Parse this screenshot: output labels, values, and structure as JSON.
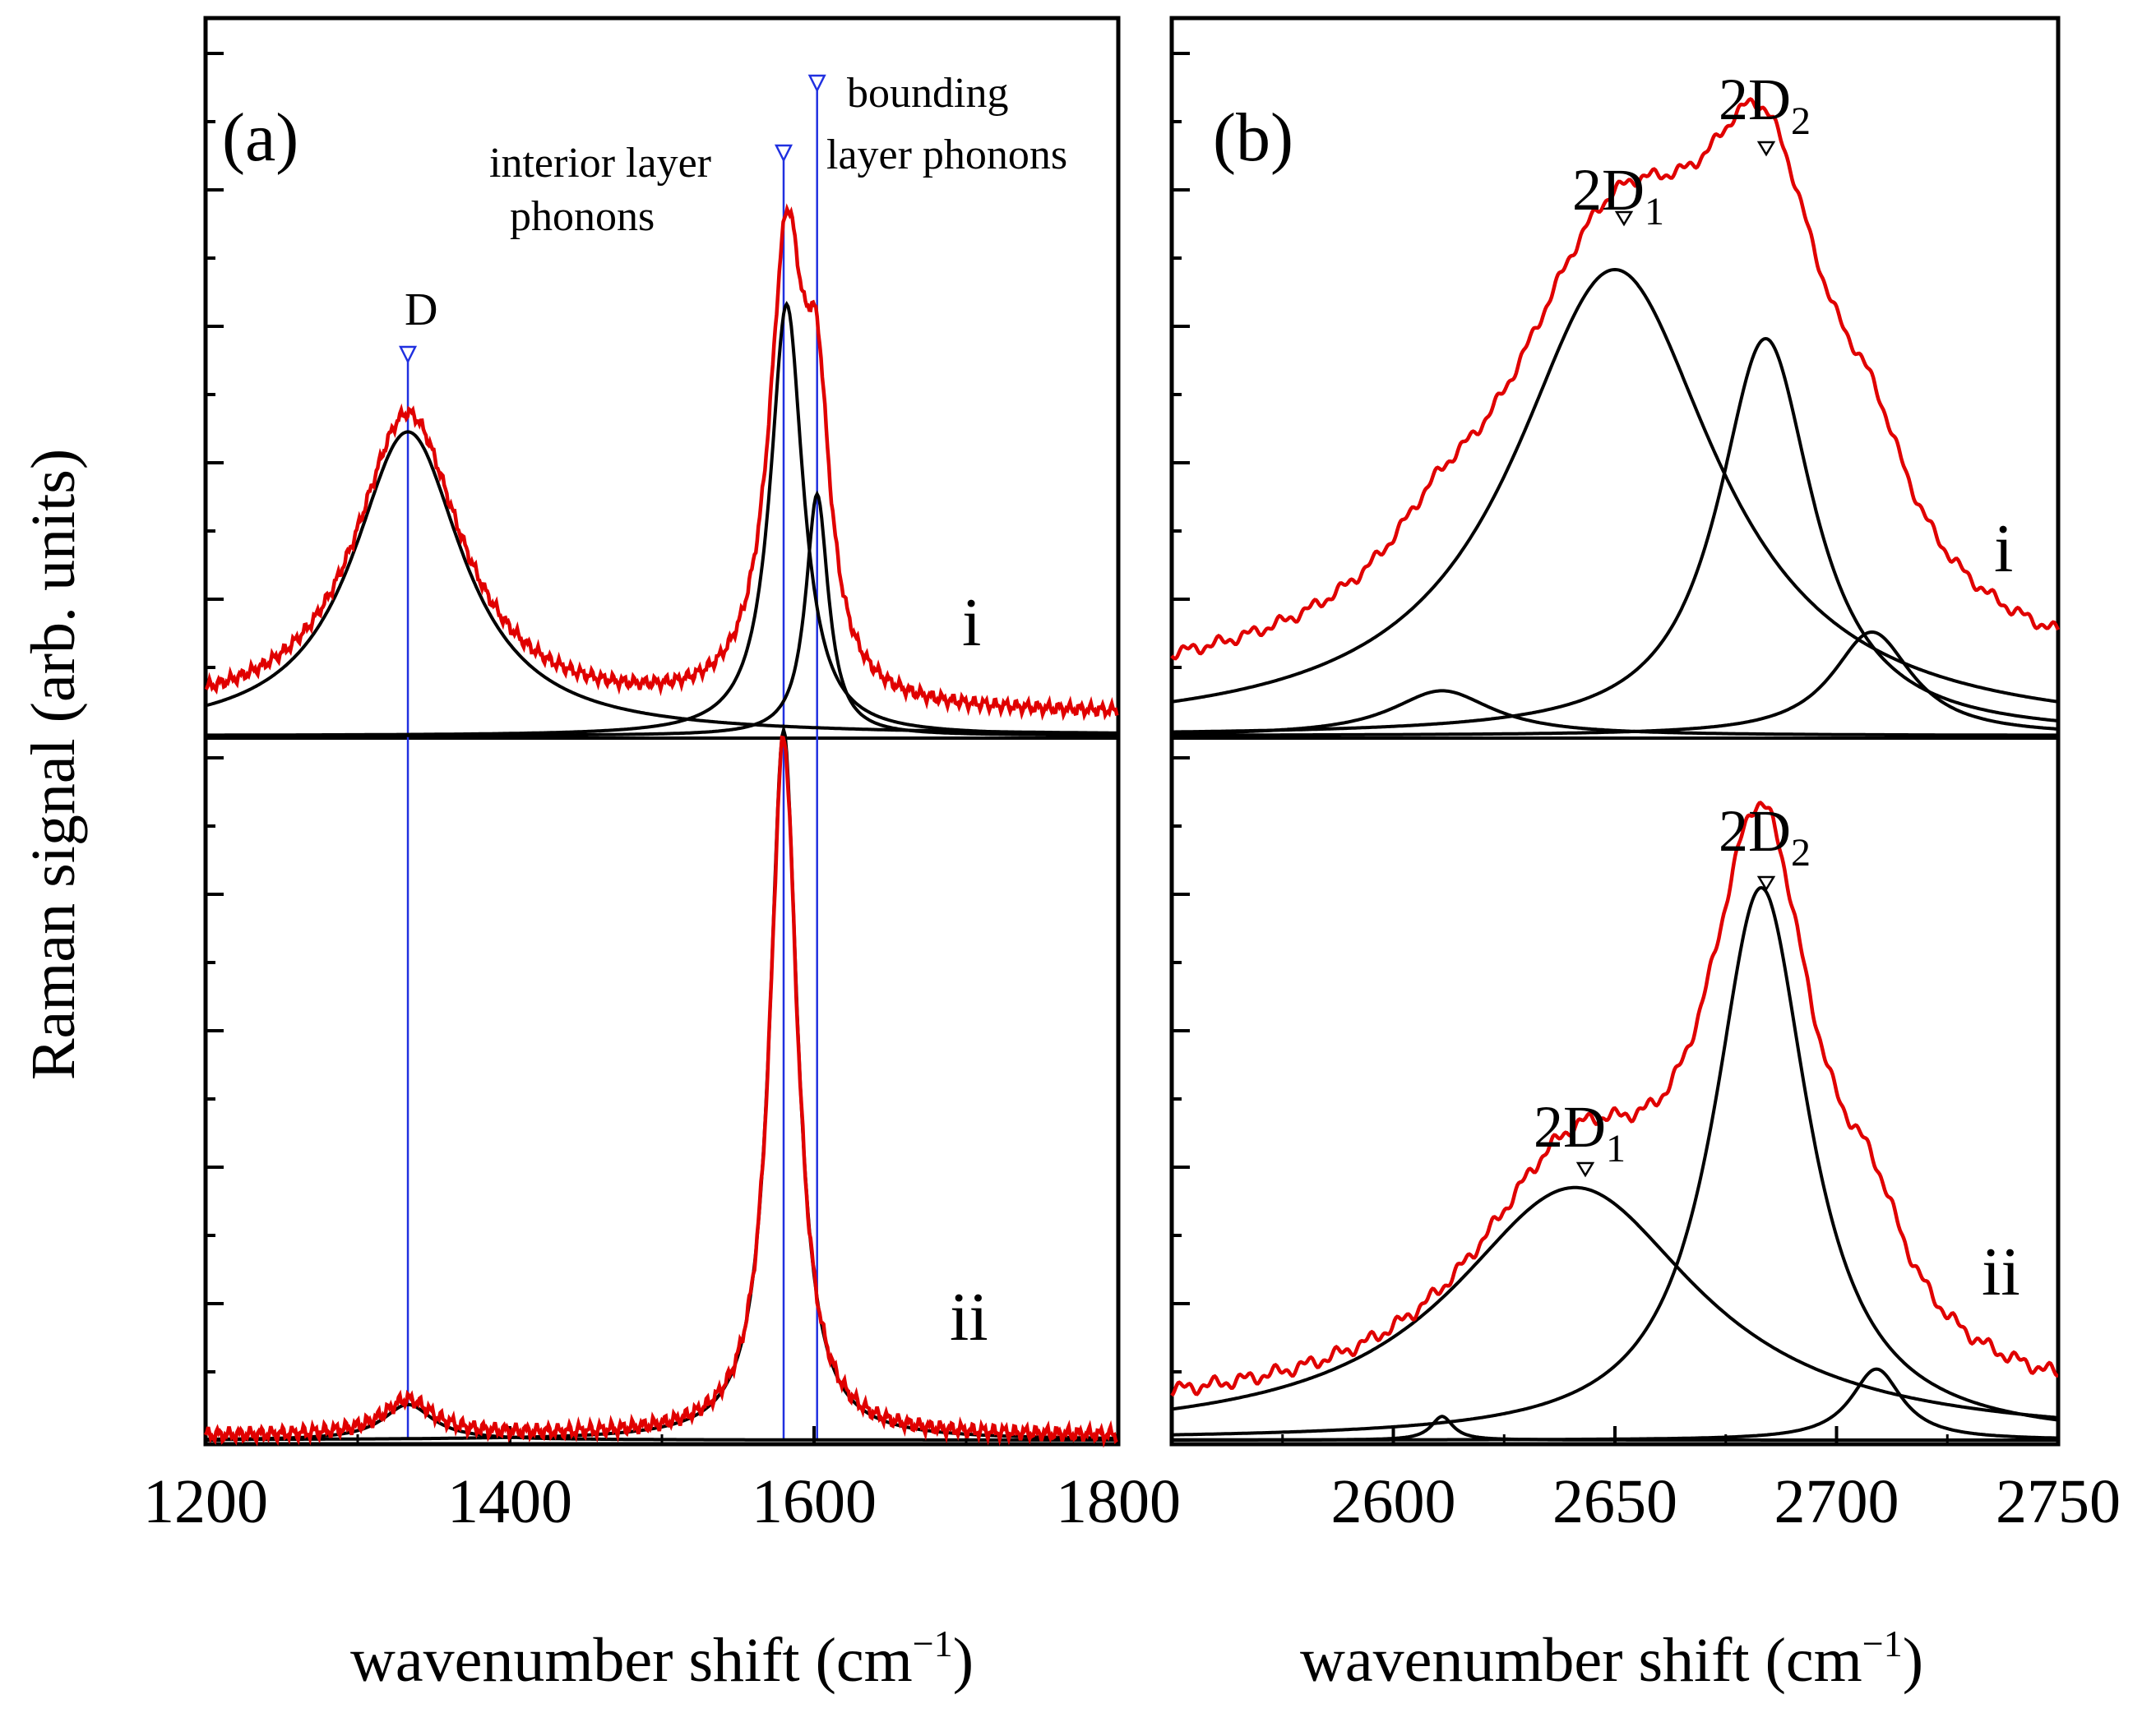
{
  "chart_data": [
    {
      "panel": "(a)",
      "type": "line",
      "xlabel": "wavenumber shift (cm",
      "xlabel_sup": "−1",
      "xlabel_close": ")",
      "ylabel": "Raman signal (arb. units)",
      "xlim": [
        1200,
        1800
      ],
      "xticks": [
        1200,
        1400,
        1600,
        1800
      ],
      "xtick_labels": [
        "1200",
        "1400",
        "1600",
        "1800"
      ],
      "reference_lines": [
        {
          "name": "D",
          "x": 1333
        },
        {
          "name": "interior",
          "x": 1580
        },
        {
          "name": "bounding",
          "x": 1602
        }
      ],
      "annotations": {
        "D": "D",
        "interior_line1": "interior layer",
        "interior_line2": "phonons",
        "bounding_line1": "bounding",
        "bounding_line2": "layer phonons"
      },
      "subplots": [
        {
          "label": "i",
          "measured": {
            "color": "#e00000",
            "baseline": 0.06,
            "peaks": [
              {
                "center": 1333,
                "height": 0.87,
                "hwhm": 42
              },
              {
                "center": 1582,
                "height": 1.3,
                "hwhm": 14
              },
              {
                "center": 1602,
                "height": 0.7,
                "hwhm": 10
              }
            ]
          },
          "components": [
            {
              "center": 1333,
              "height": 0.88,
              "hwhm": 44
            },
            {
              "center": 1582,
              "height": 1.25,
              "hwhm": 13
            },
            {
              "center": 1602,
              "height": 0.7,
              "hwhm": 9
            }
          ]
        },
        {
          "label": "ii",
          "measured": {
            "color": "#e00000",
            "baseline": 0.01,
            "peaks": [
              {
                "center": 1333,
                "height": 0.09,
                "hwhm": 20
              },
              {
                "center": 1580,
                "height": 1.77,
                "hwhm": 11
              }
            ]
          },
          "components": [
            {
              "center": 1333,
              "height": 0.09,
              "hwhm": 20
            },
            {
              "center": 1580,
              "height": 1.8,
              "hwhm": 11
            }
          ]
        }
      ]
    },
    {
      "panel": "(b)",
      "type": "line",
      "xlabel": "wavenumber shift (cm",
      "xlabel_sup": "−1",
      "xlabel_close": ")",
      "xlim": [
        2550,
        2750
      ],
      "xticks": [
        2600,
        2650,
        2700,
        2750
      ],
      "xtick_labels": [
        "2600",
        "2650",
        "2700",
        "2750"
      ],
      "annotations": {
        "i_2D1": "2D",
        "i_2D1_sub": "1",
        "i_2D2": "2D",
        "i_2D2_sub": "2",
        "ii_2D1": "2D",
        "ii_2D1_sub": "1",
        "ii_2D2": "2D",
        "ii_2D2_sub": "2"
      },
      "subplots": [
        {
          "label": "i",
          "measured": {
            "color": "#e00000",
            "baseline": 0.1,
            "peaks": [
              {
                "center": 2650,
                "height": 1.22,
                "hwhm": 32
              },
              {
                "center": 2684,
                "height": 1.1,
                "hwhm": 18
              },
              {
                "center": 2708,
                "height": 0.25,
                "hwhm": 10
              },
              {
                "center": 2610,
                "height": 0.12,
                "hwhm": 12
              }
            ]
          },
          "components": [
            {
              "center": 2650,
              "height": 1.35,
              "hwhm": 28
            },
            {
              "center": 2684,
              "height": 1.15,
              "hwhm": 13
            },
            {
              "center": 2708,
              "height": 0.3,
              "hwhm": 11
            },
            {
              "center": 2611,
              "height": 0.13,
              "hwhm": 14
            }
          ]
        },
        {
          "label": "ii",
          "measured": {
            "color": "#e00000",
            "baseline": 0.06,
            "peaks": [
              {
                "center": 2641,
                "height": 0.58,
                "hwhm": 28
              },
              {
                "center": 2683,
                "height": 1.35,
                "hwhm": 15
              },
              {
                "center": 2708,
                "height": 0.22,
                "hwhm": 9
              }
            ]
          },
          "components": [
            {
              "center": 2641,
              "height": 0.64,
              "hwhm": 34
            },
            {
              "center": 2683,
              "height": 1.4,
              "hwhm": 13
            },
            {
              "center": 2709,
              "height": 0.18,
              "hwhm": 7
            },
            {
              "center": 2611,
              "height": 0.06,
              "hwhm": 3
            }
          ]
        }
      ]
    }
  ]
}
